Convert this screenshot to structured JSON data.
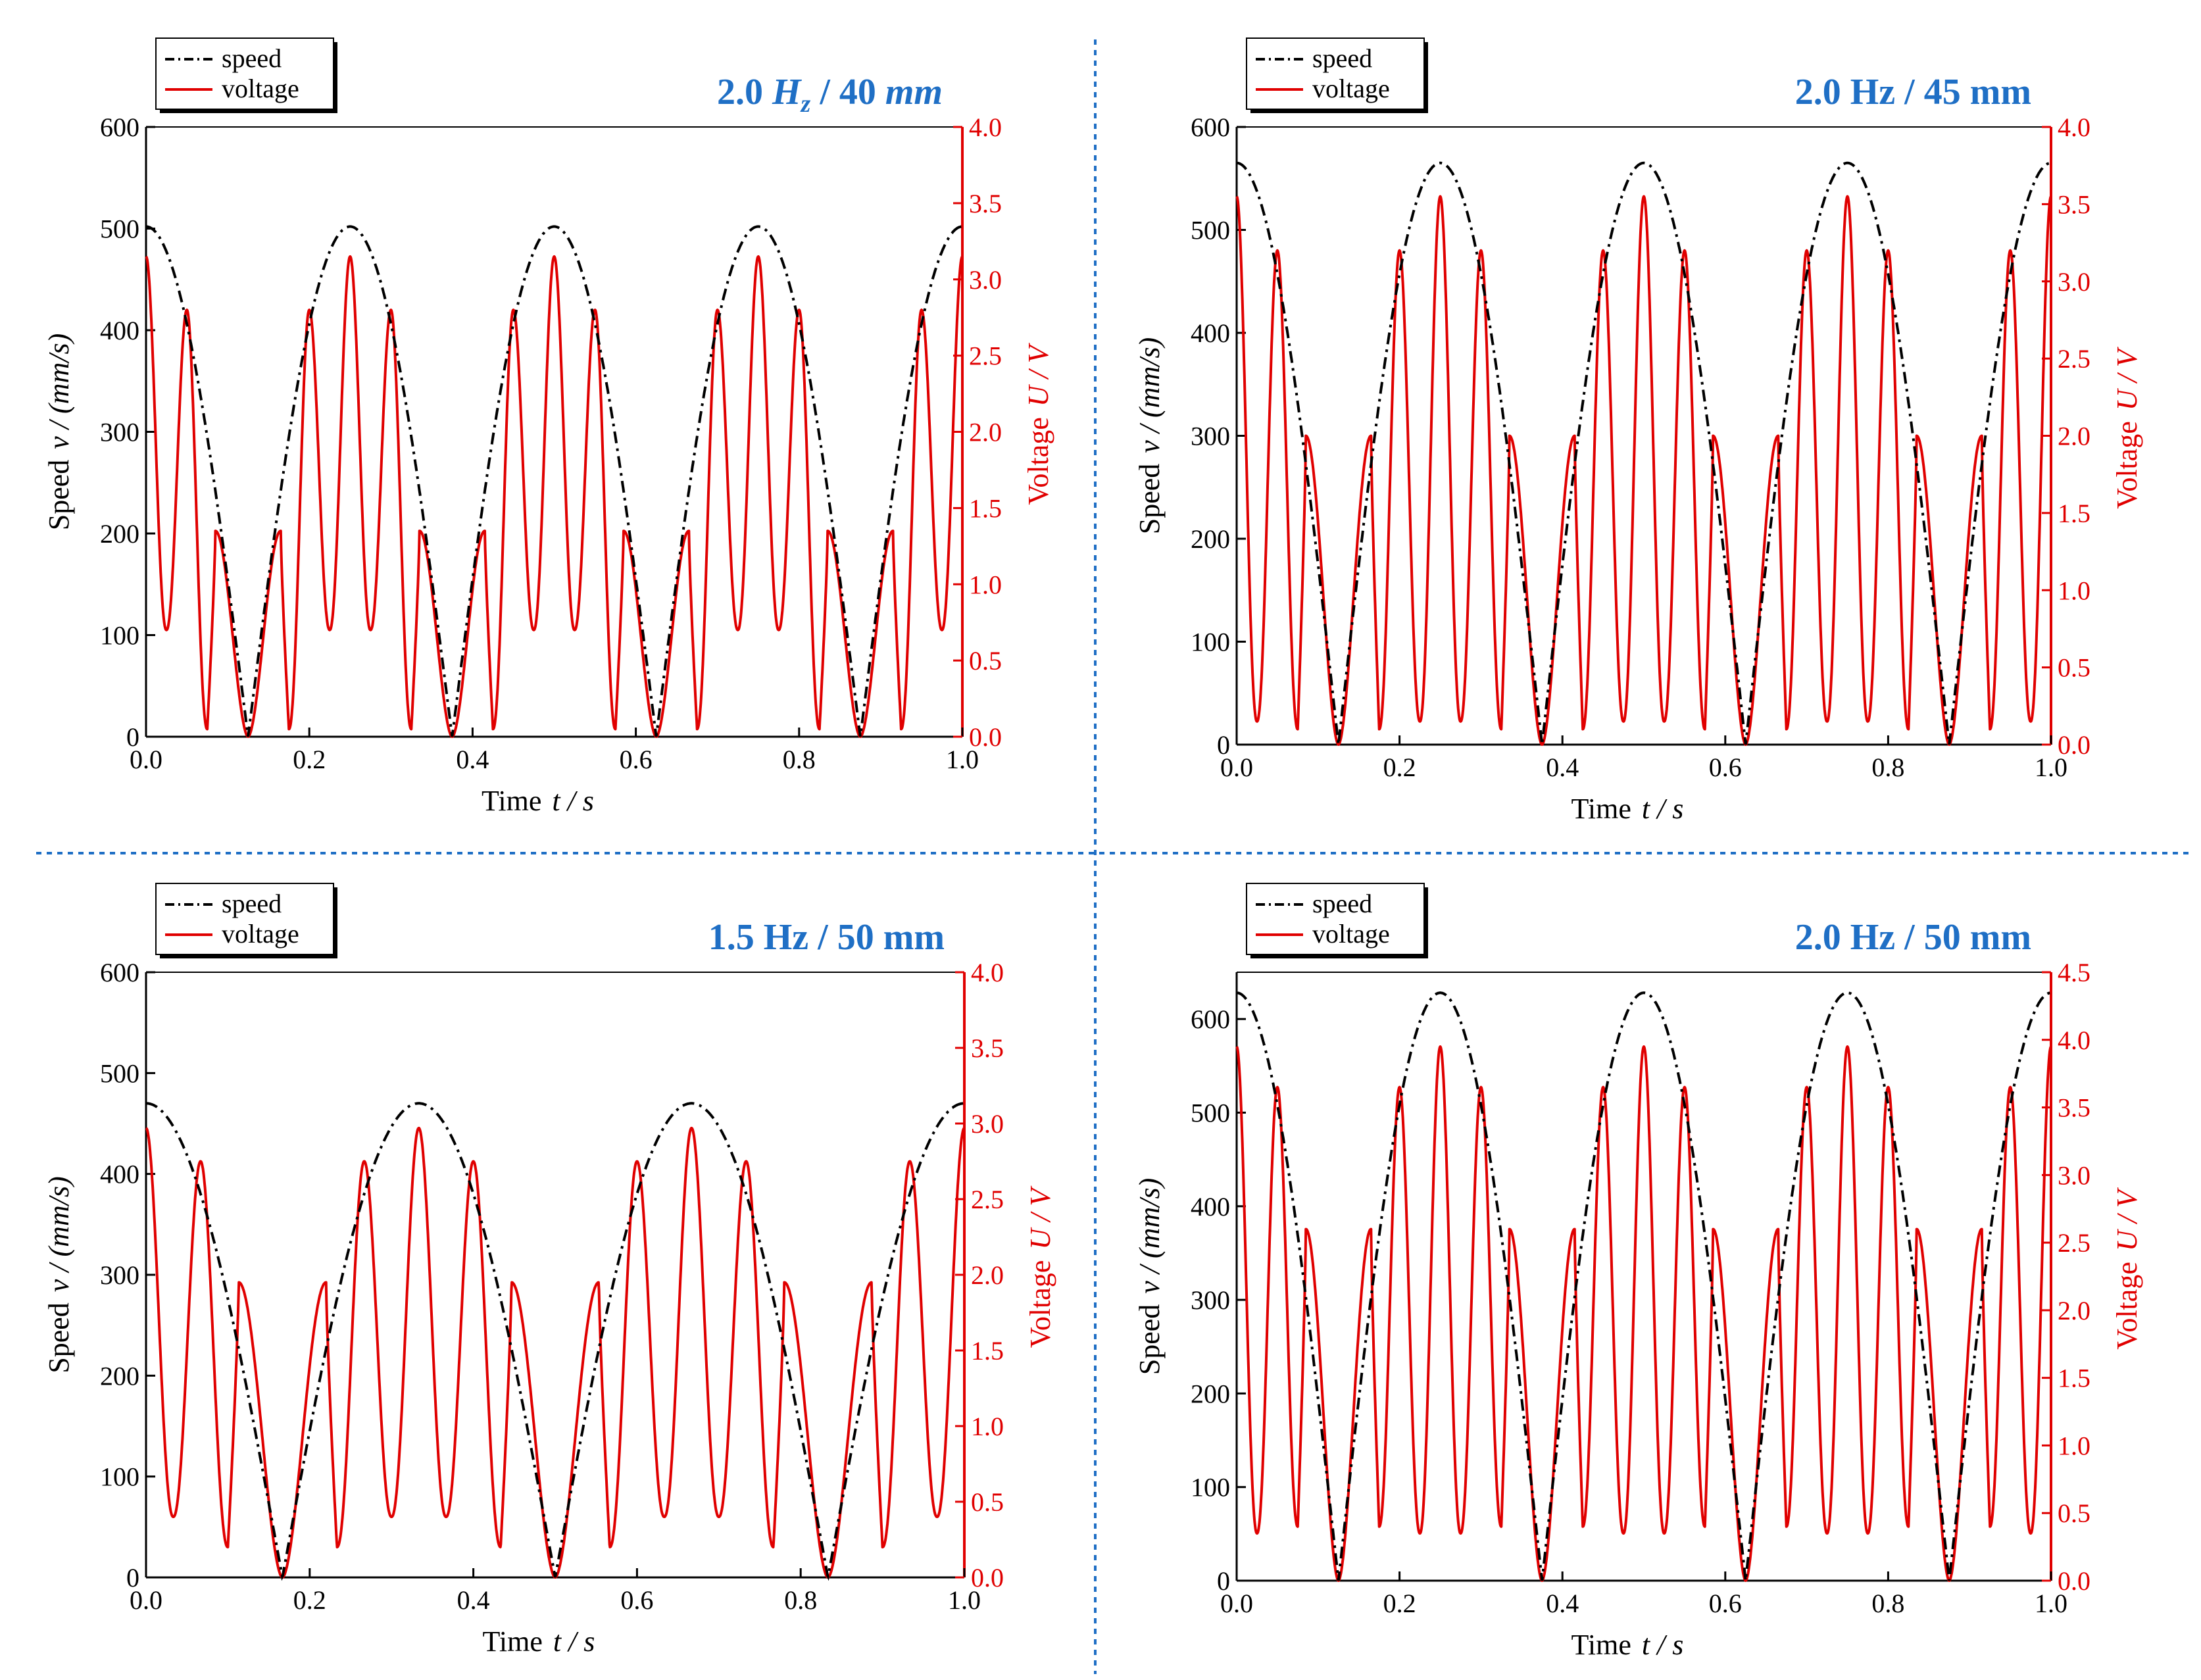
{
  "figure": {
    "divider_color": "#1f6fc5",
    "speed_color": "#000000",
    "voltage_color": "#e00000",
    "title_color": "#1f6fc5"
  },
  "chart_data": [
    {
      "type": "line",
      "title_parts": [
        {
          "text": "2.0 ",
          "italic": false
        },
        {
          "text": "H",
          "italic": true
        },
        {
          "text": "z",
          "italic": true,
          "sub": true
        },
        {
          "text": " / 40 ",
          "italic": false
        },
        {
          "text": "mm",
          "italic": true
        }
      ],
      "frequency_hz": 2.0,
      "amplitude_mm": 40,
      "xlabel": "Time",
      "xlabel_unit": "t / s",
      "ylabel_left": "Speed",
      "ylabel_left_unit": "v / (mm/s)",
      "ylabel_right": "Voltage",
      "ylabel_right_unit": "U / V",
      "xlim": [
        0.0,
        1.0
      ],
      "xticks": [
        "0.0",
        "0.2",
        "0.4",
        "0.6",
        "0.8",
        "1.0"
      ],
      "ylim_left": [
        0,
        600
      ],
      "yticks_left": [
        "0",
        "100",
        "200",
        "300",
        "400",
        "500",
        "600"
      ],
      "ylim_right": [
        0.0,
        4.0
      ],
      "yticks_right": [
        "0.0",
        "0.5",
        "1.0",
        "1.5",
        "2.0",
        "2.5",
        "3.0",
        "3.5",
        "4.0"
      ],
      "legend": [
        "speed",
        "voltage"
      ],
      "series": [
        {
          "name": "speed",
          "style": "dash-dot",
          "model": "|cos(2*pi*f*t)|",
          "peak_speed_mm_s": 502
        },
        {
          "name": "voltage",
          "style": "solid",
          "peak_voltages_V": [
            1.35,
            2.8,
            3.15
          ],
          "trough_voltages_V": [
            0.05,
            0.7,
            0.65
          ]
        }
      ]
    },
    {
      "type": "line",
      "title_parts": [
        {
          "text": "2.0 Hz / 45 mm",
          "italic": false
        }
      ],
      "frequency_hz": 2.0,
      "amplitude_mm": 45,
      "xlabel": "Time",
      "xlabel_unit": "t / s",
      "ylabel_left": "Speed",
      "ylabel_left_unit": "v / (mm/s)",
      "ylabel_right": "Voltage",
      "ylabel_right_unit": "U / V",
      "xlim": [
        0.0,
        1.0
      ],
      "xticks": [
        "0.0",
        "0.2",
        "0.4",
        "0.6",
        "0.8",
        "1.0"
      ],
      "ylim_left": [
        0,
        600
      ],
      "yticks_left": [
        "0",
        "100",
        "200",
        "300",
        "400",
        "500",
        "600"
      ],
      "ylim_right": [
        0.0,
        4.0
      ],
      "yticks_right": [
        "0.0",
        "0.5",
        "1.0",
        "1.5",
        "2.0",
        "2.5",
        "3.0",
        "3.5",
        "4.0"
      ],
      "legend": [
        "speed",
        "voltage"
      ],
      "series": [
        {
          "name": "speed",
          "style": "dash-dot",
          "model": "|cos(2*pi*f*t)|",
          "peak_speed_mm_s": 565
        },
        {
          "name": "voltage",
          "style": "solid",
          "peak_voltages_V": [
            2.0,
            3.2,
            3.55
          ],
          "trough_voltages_V": [
            0.1,
            0.15,
            0.1
          ]
        }
      ]
    },
    {
      "type": "line",
      "title_parts": [
        {
          "text": "1.5 Hz / 50 mm",
          "italic": false
        }
      ],
      "frequency_hz": 1.5,
      "amplitude_mm": 50,
      "xlabel": "Time",
      "xlabel_unit": "t / s",
      "ylabel_left": "Speed",
      "ylabel_left_unit": "v / (mm/s)",
      "ylabel_right": "Voltage",
      "ylabel_right_unit": "U / V",
      "xlim": [
        0.0,
        1.0
      ],
      "xticks": [
        "0.0",
        "0.2",
        "0.4",
        "0.6",
        "0.8",
        "1.0"
      ],
      "ylim_left": [
        0,
        600
      ],
      "yticks_left": [
        "0",
        "100",
        "200",
        "300",
        "400",
        "500",
        "600"
      ],
      "ylim_right": [
        0.0,
        4.0
      ],
      "yticks_right": [
        "0.0",
        "0.5",
        "1.0",
        "1.5",
        "2.0",
        "2.5",
        "3.0",
        "3.5",
        "4.0"
      ],
      "legend": [
        "speed",
        "voltage"
      ],
      "series": [
        {
          "name": "speed",
          "style": "dash-dot",
          "model": "|cos(2*pi*f*t)|",
          "peak_speed_mm_s": 470
        },
        {
          "name": "voltage",
          "style": "solid",
          "peak_voltages_V": [
            1.95,
            2.75,
            2.97
          ],
          "trough_voltages_V": [
            0.2,
            0.4,
            0.15
          ]
        }
      ]
    },
    {
      "type": "line",
      "title_parts": [
        {
          "text": "2.0 Hz / 50 mm",
          "italic": false
        }
      ],
      "frequency_hz": 2.0,
      "amplitude_mm": 50,
      "xlabel": "Time",
      "xlabel_unit": "t / s",
      "ylabel_left": "Speed",
      "ylabel_left_unit": "v / (mm/s)",
      "ylabel_right": "Voltage",
      "ylabel_right_unit": "U / V",
      "xlim": [
        0.0,
        1.0
      ],
      "xticks": [
        "0.0",
        "0.2",
        "0.4",
        "0.6",
        "0.8",
        "1.0"
      ],
      "ylim_left": [
        0,
        650
      ],
      "yticks_left": [
        "0",
        "100",
        "200",
        "300",
        "400",
        "500",
        "600"
      ],
      "ylim_right": [
        0.0,
        4.5
      ],
      "yticks_right": [
        "0.0",
        "0.5",
        "1.0",
        "1.5",
        "2.0",
        "2.5",
        "3.0",
        "3.5",
        "4.0",
        "4.5"
      ],
      "legend": [
        "speed",
        "voltage"
      ],
      "series": [
        {
          "name": "speed",
          "style": "dash-dot",
          "model": "|cos(2*pi*f*t)|",
          "peak_speed_mm_s": 628
        },
        {
          "name": "voltage",
          "style": "solid",
          "peak_voltages_V": [
            2.6,
            3.65,
            3.95
          ],
          "trough_voltages_V": [
            0.4,
            0.35,
            0.35
          ]
        }
      ]
    }
  ]
}
